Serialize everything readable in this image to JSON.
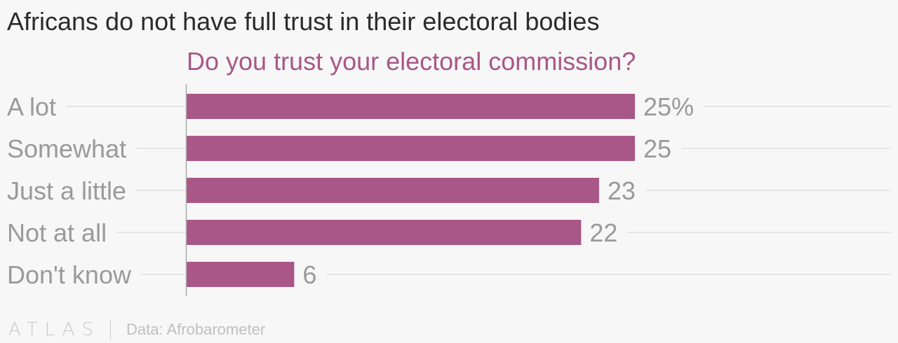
{
  "header": {
    "title": "Africans do not have full trust in their electoral bodies"
  },
  "chart_data": {
    "type": "bar",
    "orientation": "horizontal",
    "title": "Do you trust your electoral commission?",
    "categories": [
      "A lot",
      "Somewhat",
      "Just a little",
      "Not at all",
      "Don't know"
    ],
    "values": [
      25,
      25,
      23,
      22,
      6
    ],
    "value_labels": [
      "25%",
      "25",
      "23",
      "22",
      "6"
    ],
    "unit": "%",
    "xlim": [
      0,
      25
    ],
    "grid": true,
    "colors": {
      "bar": "#a95786",
      "subtitle": "#a95786",
      "category_label": "#9a9a9a",
      "value_label": "#9a9a9a",
      "grid": "#e6e6e6",
      "axis": "#aaaaaa"
    }
  },
  "footer": {
    "brand": "ATLAS",
    "source": "Data: Afrobarometer"
  }
}
